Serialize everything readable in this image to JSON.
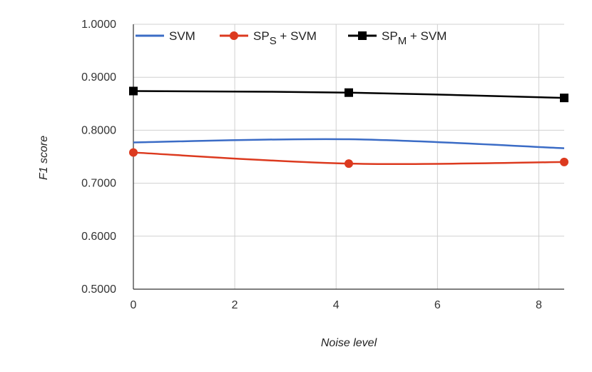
{
  "chart_data": {
    "type": "line",
    "title": "",
    "xlabel": "Noise level",
    "ylabel": "F1 score",
    "xlim": [
      0,
      8.5
    ],
    "ylim": [
      0.5,
      1.0
    ],
    "xticks": [
      0,
      2,
      4,
      6,
      8
    ],
    "xtick_labels": [
      "0",
      "2",
      "4",
      "6",
      "8"
    ],
    "yticks": [
      0.5,
      0.6,
      0.7,
      0.8,
      0.9,
      1.0
    ],
    "ytick_labels": [
      "0.5000",
      "0.6000",
      "0.7000",
      "0.8000",
      "0.9000",
      "1.0000"
    ],
    "grid": "vertical",
    "legend_position": "top",
    "series": [
      {
        "name": "SVM",
        "name_main": "SVM",
        "name_sub": "",
        "name_suffix": "",
        "color": "#3b6cc6",
        "marker": "none",
        "smooth": true,
        "x": [
          0,
          4.25,
          8.5
        ],
        "y": [
          0.777,
          0.783,
          0.766
        ]
      },
      {
        "name": "SPS + SVM",
        "name_main": "SP",
        "name_sub": "S",
        "name_suffix": " + SVM",
        "color": "#dc3a1f",
        "marker": "circle",
        "smooth": true,
        "x": [
          0,
          4.25,
          8.5
        ],
        "y": [
          0.758,
          0.737,
          0.74
        ]
      },
      {
        "name": "SPM + SVM",
        "name_main": "SP",
        "name_sub": "M",
        "name_suffix": " + SVM",
        "color": "#000000",
        "marker": "square",
        "smooth": true,
        "x": [
          0,
          4.25,
          8.5
        ],
        "y": [
          0.874,
          0.871,
          0.861
        ]
      }
    ]
  }
}
